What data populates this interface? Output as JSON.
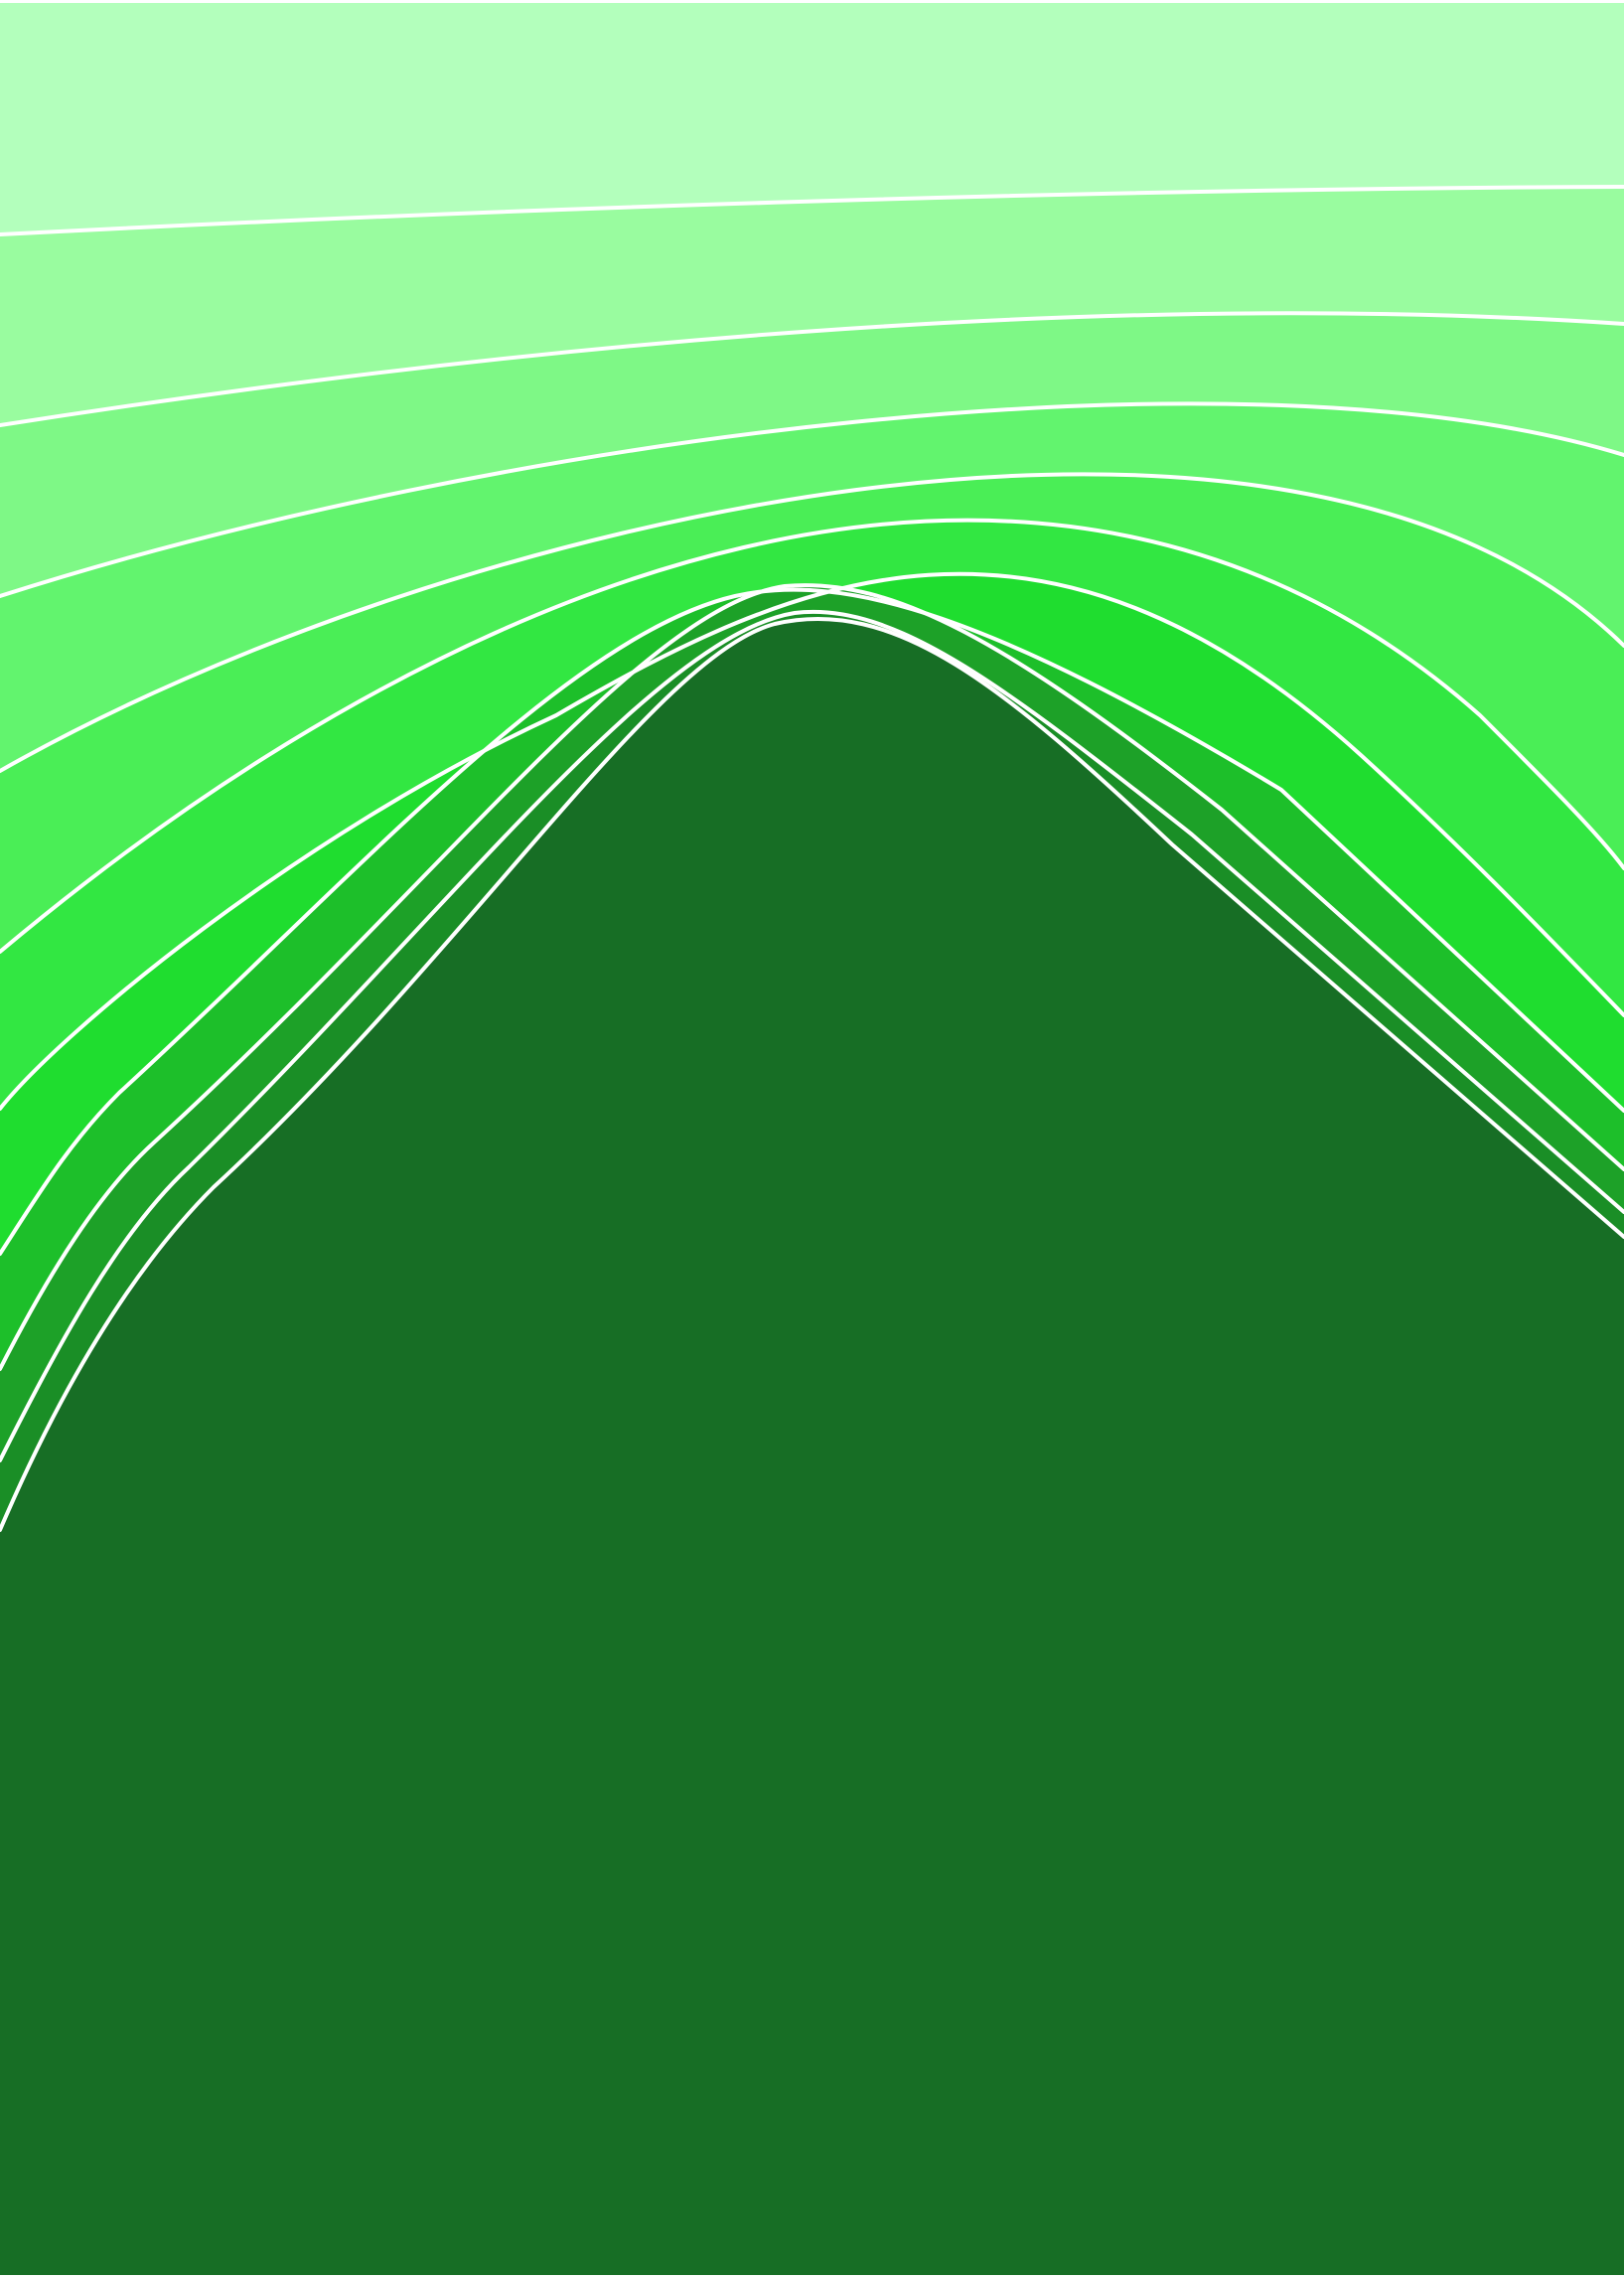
{
  "artwork": {
    "background_color": "#ffffff",
    "line_color": "#ffffff",
    "band_colors": [
      "#b3ffbc",
      "#99fc9f",
      "#7ef886",
      "#62f46e",
      "#4aee56",
      "#32e742",
      "#1fdd2f",
      "#1dbf2a",
      "#1da128",
      "#1a8e26",
      "#176e25"
    ]
  }
}
